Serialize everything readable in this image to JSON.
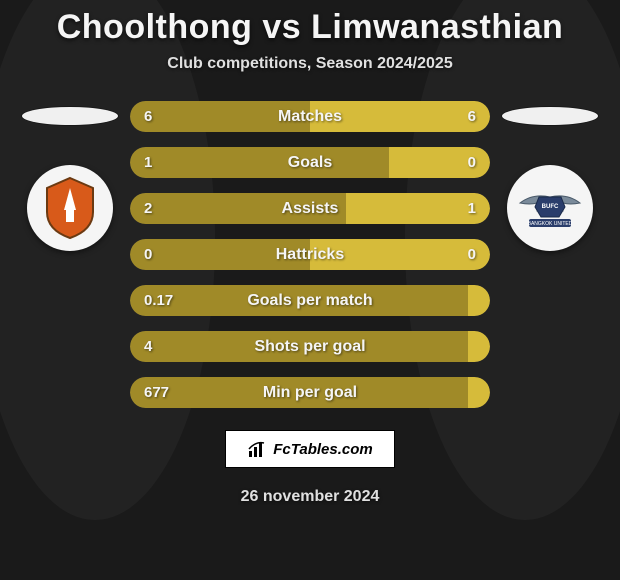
{
  "title": "Choolthong vs Limwanasthian",
  "subtitle": "Club competitions, Season 2024/2025",
  "footer_date": "26 november 2024",
  "brand": "FcTables.com",
  "colors": {
    "player1": "#a08a28",
    "player2": "#d6bb3a",
    "bar_bg": "#3a3a3a"
  },
  "player1": {
    "club_logo_bg": "#f5f5f5"
  },
  "player2": {
    "club_logo_bg": "#f5f5f5"
  },
  "stats": [
    {
      "label": "Matches",
      "left_val": "6",
      "right_val": "6",
      "left_pct": 50,
      "right_pct": 50
    },
    {
      "label": "Goals",
      "left_val": "1",
      "right_val": "0",
      "left_pct": 72,
      "right_pct": 28
    },
    {
      "label": "Assists",
      "left_val": "2",
      "right_val": "1",
      "left_pct": 60,
      "right_pct": 40
    },
    {
      "label": "Hattricks",
      "left_val": "0",
      "right_val": "0",
      "left_pct": 50,
      "right_pct": 50
    },
    {
      "label": "Goals per match",
      "left_val": "0.17",
      "right_val": "",
      "left_pct": 94,
      "right_pct": 6
    },
    {
      "label": "Shots per goal",
      "left_val": "4",
      "right_val": "",
      "left_pct": 94,
      "right_pct": 6
    },
    {
      "label": "Min per goal",
      "left_val": "677",
      "right_val": "",
      "left_pct": 94,
      "right_pct": 6
    }
  ]
}
